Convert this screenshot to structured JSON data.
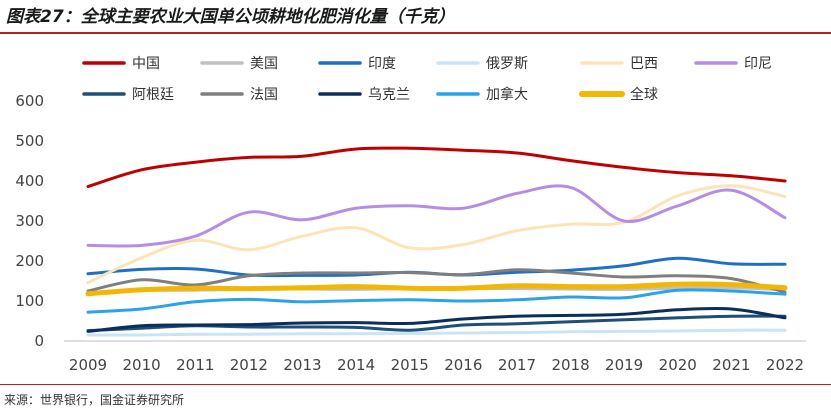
{
  "title": "图表27：全球主要农业大国单公顷耕地化肥消化量（千克）",
  "source": "来源：世界银行，国金证券研究所",
  "chart_data": {
    "type": "line",
    "title": "图表27：全球主要农业大国单公顷耕地化肥消化量（千克）",
    "xlabel": "",
    "ylabel": "",
    "x": [
      "2009",
      "2010",
      "2011",
      "2012",
      "2013",
      "2014",
      "2015",
      "2016",
      "2017",
      "2018",
      "2019",
      "2020",
      "2021",
      "2022"
    ],
    "ylim": [
      0,
      600
    ],
    "yticks": [
      0,
      100,
      200,
      300,
      400,
      500,
      600
    ],
    "grid": false,
    "legend_position": "top",
    "series": [
      {
        "name": "中国",
        "color": "#c00000",
        "values": [
          386,
          428,
          447,
          459,
          462,
          480,
          482,
          477,
          470,
          451,
          434,
          421,
          413,
          400
        ]
      },
      {
        "name": "美国",
        "color": "#bfbfbf",
        "values": [
          119,
          126,
          127,
          129,
          130,
          129,
          131,
          131,
          131,
          130,
          129,
          132,
          133,
          128
        ]
      },
      {
        "name": "印度",
        "color": "#1f6fc5",
        "values": [
          168,
          179,
          180,
          165,
          164,
          165,
          172,
          165,
          172,
          177,
          188,
          207,
          193,
          192
        ]
      },
      {
        "name": "俄罗斯",
        "color": "#c9e4f6",
        "values": [
          15,
          15,
          17,
          17,
          18,
          18,
          19,
          20,
          21,
          23,
          24,
          25,
          27,
          27
        ]
      },
      {
        "name": "巴西",
        "color": "#fce4b8",
        "values": [
          146,
          208,
          252,
          228,
          262,
          283,
          233,
          241,
          276,
          292,
          297,
          363,
          388,
          361
        ]
      },
      {
        "name": "印尼",
        "color": "#b48ee6",
        "values": [
          239,
          239,
          262,
          322,
          303,
          332,
          338,
          332,
          369,
          384,
          300,
          338,
          377,
          308
        ]
      },
      {
        "name": "阿根廷",
        "color": "#1f4e79",
        "values": [
          26,
          32,
          38,
          35,
          35,
          34,
          27,
          40,
          43,
          48,
          53,
          58,
          62,
          62
        ]
      },
      {
        "name": "法国",
        "color": "#7f7f7f",
        "values": [
          125,
          153,
          140,
          163,
          170,
          170,
          171,
          166,
          178,
          170,
          160,
          163,
          156,
          122
        ]
      },
      {
        "name": "乌克兰",
        "color": "#0b2e5c",
        "values": [
          24,
          38,
          40,
          41,
          45,
          46,
          44,
          55,
          62,
          64,
          67,
          78,
          80,
          58
        ]
      },
      {
        "name": "加拿大",
        "color": "#2aa3e8",
        "values": [
          72,
          80,
          98,
          104,
          98,
          101,
          103,
          100,
          103,
          110,
          108,
          127,
          125,
          117
        ]
      },
      {
        "name": "全球",
        "color": "#f2b705",
        "values": [
          118,
          128,
          132,
          131,
          133,
          136,
          132,
          132,
          138,
          136,
          136,
          142,
          141,
          133
        ],
        "emphasis": true
      }
    ]
  }
}
